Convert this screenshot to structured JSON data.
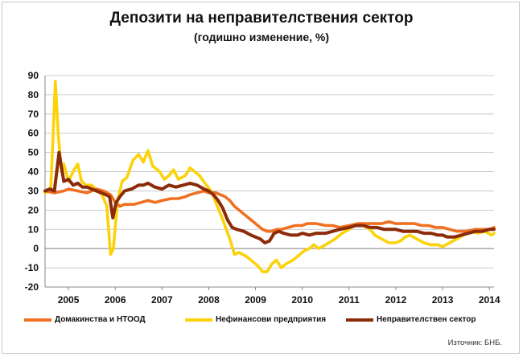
{
  "chart_data": {
    "type": "line",
    "title": "Депозити на неправителствения сектор",
    "subtitle": "(годишно изменение, %)",
    "xlabel": "",
    "ylabel": "",
    "ylim": [
      -20,
      90
    ],
    "yticks": [
      "90",
      "80",
      "70",
      "60",
      "50",
      "40",
      "30",
      "20",
      "10",
      "0",
      "-10",
      "-20"
    ],
    "xlim": [
      2004.5,
      2014.1
    ],
    "xticks": [
      {
        "label": "2005",
        "pos": 2005.0
      },
      {
        "label": "2006",
        "pos": 2006.0
      },
      {
        "label": "2007",
        "pos": 2007.0
      },
      {
        "label": "2008",
        "pos": 2008.0
      },
      {
        "label": "2009",
        "pos": 2009.0
      },
      {
        "label": "2010",
        "pos": 2010.0
      },
      {
        "label": "2011",
        "pos": 2011.0
      },
      {
        "label": "2012",
        "pos": 2012.0
      },
      {
        "label": "2013",
        "pos": 2013.0
      },
      {
        "label": "2014",
        "pos": 2014.0
      }
    ],
    "grid": true,
    "legend_position": "bottom",
    "series": [
      {
        "name": "Домакинства и НТООД",
        "color": "#f07022",
        "points": [
          [
            2004.5,
            30
          ],
          [
            2004.7,
            29
          ],
          [
            2004.9,
            30
          ],
          [
            2005.0,
            31
          ],
          [
            2005.2,
            30
          ],
          [
            2005.4,
            29
          ],
          [
            2005.6,
            31
          ],
          [
            2005.75,
            30
          ],
          [
            2005.9,
            28
          ],
          [
            2006.0,
            24
          ],
          [
            2006.05,
            23
          ],
          [
            2006.1,
            22
          ],
          [
            2006.2,
            23
          ],
          [
            2006.4,
            23
          ],
          [
            2006.55,
            24
          ],
          [
            2006.7,
            25
          ],
          [
            2006.85,
            24
          ],
          [
            2007.0,
            25
          ],
          [
            2007.2,
            26
          ],
          [
            2007.35,
            26
          ],
          [
            2007.5,
            27
          ],
          [
            2007.6,
            28
          ],
          [
            2007.75,
            29
          ],
          [
            2007.9,
            30
          ],
          [
            2008.0,
            29
          ],
          [
            2008.15,
            29
          ],
          [
            2008.25,
            28
          ],
          [
            2008.35,
            27
          ],
          [
            2008.45,
            25
          ],
          [
            2008.55,
            22
          ],
          [
            2008.7,
            19
          ],
          [
            2008.85,
            16
          ],
          [
            2009.0,
            13
          ],
          [
            2009.15,
            10
          ],
          [
            2009.25,
            9
          ],
          [
            2009.35,
            9
          ],
          [
            2009.45,
            10
          ],
          [
            2009.55,
            10
          ],
          [
            2009.7,
            11
          ],
          [
            2009.85,
            12
          ],
          [
            2010.0,
            12
          ],
          [
            2010.1,
            13
          ],
          [
            2010.3,
            13
          ],
          [
            2010.5,
            12
          ],
          [
            2010.65,
            12
          ],
          [
            2010.8,
            11
          ],
          [
            2011.0,
            12
          ],
          [
            2011.2,
            13
          ],
          [
            2011.35,
            13
          ],
          [
            2011.5,
            13
          ],
          [
            2011.7,
            13
          ],
          [
            2011.85,
            14
          ],
          [
            2012.0,
            13
          ],
          [
            2012.2,
            13
          ],
          [
            2012.4,
            13
          ],
          [
            2012.55,
            12
          ],
          [
            2012.7,
            12
          ],
          [
            2012.85,
            11
          ],
          [
            2013.0,
            11
          ],
          [
            2013.15,
            10
          ],
          [
            2013.3,
            9
          ],
          [
            2013.5,
            9
          ],
          [
            2013.7,
            10
          ],
          [
            2013.85,
            10
          ],
          [
            2014.0,
            10
          ],
          [
            2014.1,
            11
          ]
        ]
      },
      {
        "name": "Нефинансови предприятия",
        "color": "#fcd20a",
        "points": [
          [
            2004.5,
            29
          ],
          [
            2004.62,
            30
          ],
          [
            2004.72,
            87
          ],
          [
            2004.78,
            60
          ],
          [
            2004.85,
            40
          ],
          [
            2004.9,
            44
          ],
          [
            2005.0,
            35
          ],
          [
            2005.1,
            40
          ],
          [
            2005.2,
            44
          ],
          [
            2005.28,
            35
          ],
          [
            2005.38,
            33
          ],
          [
            2005.5,
            33
          ],
          [
            2005.62,
            30
          ],
          [
            2005.72,
            28
          ],
          [
            2005.82,
            22
          ],
          [
            2005.9,
            -3
          ],
          [
            2005.96,
            0
          ],
          [
            2006.05,
            25
          ],
          [
            2006.15,
            35
          ],
          [
            2006.25,
            37
          ],
          [
            2006.38,
            46
          ],
          [
            2006.5,
            49
          ],
          [
            2006.6,
            45
          ],
          [
            2006.7,
            51
          ],
          [
            2006.8,
            43
          ],
          [
            2006.95,
            40
          ],
          [
            2007.05,
            36
          ],
          [
            2007.15,
            38
          ],
          [
            2007.25,
            41
          ],
          [
            2007.35,
            36
          ],
          [
            2007.5,
            38
          ],
          [
            2007.6,
            42
          ],
          [
            2007.7,
            40
          ],
          [
            2007.8,
            38
          ],
          [
            2007.95,
            33
          ],
          [
            2008.05,
            30
          ],
          [
            2008.15,
            24
          ],
          [
            2008.3,
            15
          ],
          [
            2008.45,
            5
          ],
          [
            2008.55,
            -3
          ],
          [
            2008.65,
            -2
          ],
          [
            2008.8,
            -4
          ],
          [
            2008.95,
            -7
          ],
          [
            2009.05,
            -9
          ],
          [
            2009.15,
            -12
          ],
          [
            2009.25,
            -12
          ],
          [
            2009.35,
            -8
          ],
          [
            2009.45,
            -6
          ],
          [
            2009.55,
            -10
          ],
          [
            2009.65,
            -8
          ],
          [
            2009.8,
            -6
          ],
          [
            2009.95,
            -3
          ],
          [
            2010.05,
            -1
          ],
          [
            2010.15,
            0
          ],
          [
            2010.25,
            2
          ],
          [
            2010.35,
            0
          ],
          [
            2010.5,
            2
          ],
          [
            2010.7,
            5
          ],
          [
            2010.85,
            8
          ],
          [
            2011.0,
            10
          ],
          [
            2011.15,
            13
          ],
          [
            2011.3,
            12
          ],
          [
            2011.45,
            10
          ],
          [
            2011.55,
            7
          ],
          [
            2011.7,
            5
          ],
          [
            2011.85,
            3
          ],
          [
            2012.0,
            3
          ],
          [
            2012.1,
            4
          ],
          [
            2012.2,
            6
          ],
          [
            2012.3,
            7
          ],
          [
            2012.45,
            5
          ],
          [
            2012.6,
            3
          ],
          [
            2012.75,
            2
          ],
          [
            2012.9,
            2
          ],
          [
            2013.0,
            1
          ],
          [
            2013.15,
            3
          ],
          [
            2013.3,
            5
          ],
          [
            2013.45,
            7
          ],
          [
            2013.6,
            9
          ],
          [
            2013.75,
            8
          ],
          [
            2013.9,
            9
          ],
          [
            2014.05,
            7
          ],
          [
            2014.1,
            8
          ]
        ]
      },
      {
        "name": "Неправителствен сектор",
        "color": "#8b2b08",
        "points": [
          [
            2004.5,
            30
          ],
          [
            2004.6,
            31
          ],
          [
            2004.7,
            30
          ],
          [
            2004.8,
            50
          ],
          [
            2004.9,
            35
          ],
          [
            2005.0,
            36
          ],
          [
            2005.1,
            33
          ],
          [
            2005.2,
            34
          ],
          [
            2005.3,
            32
          ],
          [
            2005.4,
            32
          ],
          [
            2005.5,
            31
          ],
          [
            2005.6,
            30
          ],
          [
            2005.7,
            29
          ],
          [
            2005.8,
            28
          ],
          [
            2005.88,
            27
          ],
          [
            2005.95,
            16
          ],
          [
            2006.02,
            24
          ],
          [
            2006.1,
            27
          ],
          [
            2006.2,
            30
          ],
          [
            2006.35,
            31
          ],
          [
            2006.5,
            33
          ],
          [
            2006.6,
            33
          ],
          [
            2006.7,
            34
          ],
          [
            2006.85,
            32
          ],
          [
            2007.0,
            31
          ],
          [
            2007.15,
            33
          ],
          [
            2007.3,
            32
          ],
          [
            2007.45,
            33
          ],
          [
            2007.6,
            34
          ],
          [
            2007.75,
            33
          ],
          [
            2007.9,
            31
          ],
          [
            2008.0,
            30
          ],
          [
            2008.1,
            28
          ],
          [
            2008.2,
            25
          ],
          [
            2008.3,
            21
          ],
          [
            2008.4,
            15
          ],
          [
            2008.5,
            11
          ],
          [
            2008.6,
            10
          ],
          [
            2008.75,
            9
          ],
          [
            2008.9,
            7
          ],
          [
            2009.0,
            6
          ],
          [
            2009.1,
            5
          ],
          [
            2009.2,
            3
          ],
          [
            2009.3,
            4
          ],
          [
            2009.4,
            8
          ],
          [
            2009.5,
            9
          ],
          [
            2009.6,
            8
          ],
          [
            2009.75,
            7
          ],
          [
            2009.9,
            7
          ],
          [
            2010.0,
            8
          ],
          [
            2010.15,
            7
          ],
          [
            2010.3,
            8
          ],
          [
            2010.5,
            8
          ],
          [
            2010.65,
            9
          ],
          [
            2010.8,
            10
          ],
          [
            2011.0,
            11
          ],
          [
            2011.15,
            12
          ],
          [
            2011.3,
            12
          ],
          [
            2011.45,
            11
          ],
          [
            2011.6,
            11
          ],
          [
            2011.75,
            10
          ],
          [
            2011.9,
            10
          ],
          [
            2012.0,
            10
          ],
          [
            2012.15,
            9
          ],
          [
            2012.3,
            9
          ],
          [
            2012.45,
            9
          ],
          [
            2012.6,
            8
          ],
          [
            2012.75,
            8
          ],
          [
            2012.9,
            7
          ],
          [
            2013.0,
            7
          ],
          [
            2013.1,
            6
          ],
          [
            2013.25,
            6
          ],
          [
            2013.4,
            7
          ],
          [
            2013.55,
            8
          ],
          [
            2013.7,
            9
          ],
          [
            2013.85,
            9
          ],
          [
            2014.0,
            10
          ],
          [
            2014.1,
            10
          ]
        ]
      }
    ]
  },
  "source_label": "Източник: БНБ."
}
